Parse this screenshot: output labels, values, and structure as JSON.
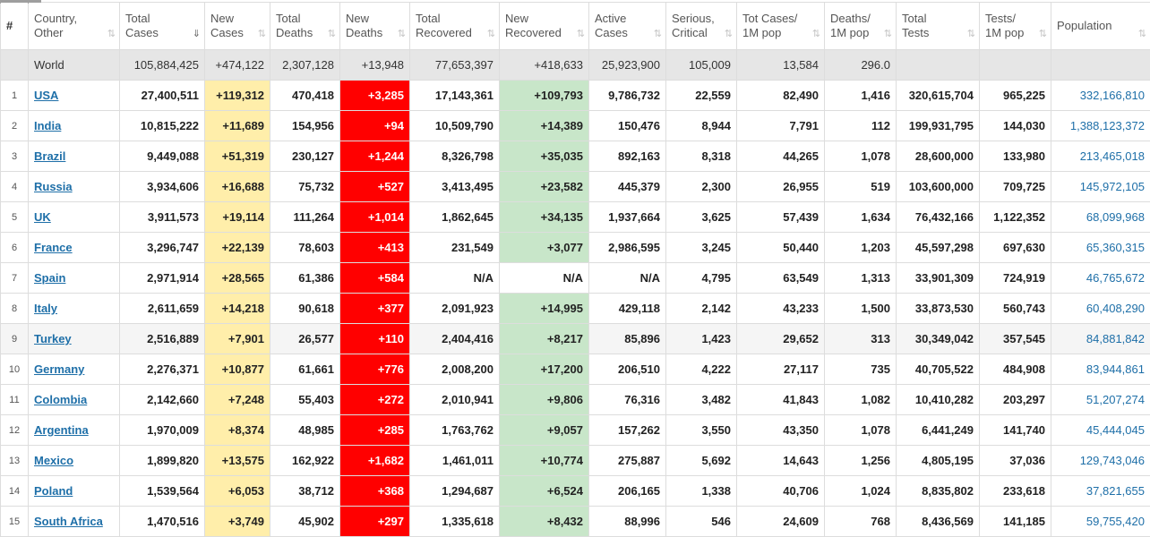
{
  "columns": [
    {
      "key": "hash",
      "label": "#"
    },
    {
      "key": "country",
      "label": "Country,\nOther"
    },
    {
      "key": "total_cases",
      "label": "Total\nCases"
    },
    {
      "key": "new_cases",
      "label": "New\nCases"
    },
    {
      "key": "total_deaths",
      "label": "Total\nDeaths"
    },
    {
      "key": "new_deaths",
      "label": "New\nDeaths"
    },
    {
      "key": "total_recovered",
      "label": "Total\nRecovered"
    },
    {
      "key": "new_recovered",
      "label": "New\nRecovered"
    },
    {
      "key": "active_cases",
      "label": "Active\nCases"
    },
    {
      "key": "serious",
      "label": "Serious,\nCritical"
    },
    {
      "key": "cases_per_1m",
      "label": "Tot Cases/\n1M pop"
    },
    {
      "key": "deaths_per_1m",
      "label": "Deaths/\n1M pop"
    },
    {
      "key": "total_tests",
      "label": "Total\nTests"
    },
    {
      "key": "tests_per_1m",
      "label": "Tests/\n1M pop"
    },
    {
      "key": "population",
      "label": "Population"
    }
  ],
  "sorted_column": "total_cases",
  "colors": {
    "new_cases_bg": "#ffeeaa",
    "new_deaths_bg": "#ff0000",
    "new_recovered_bg": "#c8e6c9",
    "link": "#1e6fa8",
    "world_row_bg": "#e6e6e6"
  },
  "world": {
    "country": "World",
    "total_cases": "105,884,425",
    "new_cases": "+474,122",
    "total_deaths": "2,307,128",
    "new_deaths": "+13,948",
    "total_recovered": "77,653,397",
    "new_recovered": "+418,633",
    "active_cases": "25,923,900",
    "serious": "105,009",
    "cases_per_1m": "13,584",
    "deaths_per_1m": "296.0",
    "total_tests": "",
    "tests_per_1m": "",
    "population": ""
  },
  "rows": [
    {
      "idx": "1",
      "country": "USA",
      "total_cases": "27,400,511",
      "new_cases": "+119,312",
      "total_deaths": "470,418",
      "new_deaths": "+3,285",
      "total_recovered": "17,143,361",
      "new_recovered": "+109,793",
      "active_cases": "9,786,732",
      "serious": "22,559",
      "cases_per_1m": "82,490",
      "deaths_per_1m": "1,416",
      "total_tests": "320,615,704",
      "tests_per_1m": "965,225",
      "population": "332,166,810"
    },
    {
      "idx": "2",
      "country": "India",
      "total_cases": "10,815,222",
      "new_cases": "+11,689",
      "total_deaths": "154,956",
      "new_deaths": "+94",
      "total_recovered": "10,509,790",
      "new_recovered": "+14,389",
      "active_cases": "150,476",
      "serious": "8,944",
      "cases_per_1m": "7,791",
      "deaths_per_1m": "112",
      "total_tests": "199,931,795",
      "tests_per_1m": "144,030",
      "population": "1,388,123,372"
    },
    {
      "idx": "3",
      "country": "Brazil",
      "total_cases": "9,449,088",
      "new_cases": "+51,319",
      "total_deaths": "230,127",
      "new_deaths": "+1,244",
      "total_recovered": "8,326,798",
      "new_recovered": "+35,035",
      "active_cases": "892,163",
      "serious": "8,318",
      "cases_per_1m": "44,265",
      "deaths_per_1m": "1,078",
      "total_tests": "28,600,000",
      "tests_per_1m": "133,980",
      "population": "213,465,018"
    },
    {
      "idx": "4",
      "country": "Russia",
      "total_cases": "3,934,606",
      "new_cases": "+16,688",
      "total_deaths": "75,732",
      "new_deaths": "+527",
      "total_recovered": "3,413,495",
      "new_recovered": "+23,582",
      "active_cases": "445,379",
      "serious": "2,300",
      "cases_per_1m": "26,955",
      "deaths_per_1m": "519",
      "total_tests": "103,600,000",
      "tests_per_1m": "709,725",
      "population": "145,972,105"
    },
    {
      "idx": "5",
      "country": "UK",
      "total_cases": "3,911,573",
      "new_cases": "+19,114",
      "total_deaths": "111,264",
      "new_deaths": "+1,014",
      "total_recovered": "1,862,645",
      "new_recovered": "+34,135",
      "active_cases": "1,937,664",
      "serious": "3,625",
      "cases_per_1m": "57,439",
      "deaths_per_1m": "1,634",
      "total_tests": "76,432,166",
      "tests_per_1m": "1,122,352",
      "population": "68,099,968"
    },
    {
      "idx": "6",
      "country": "France",
      "total_cases": "3,296,747",
      "new_cases": "+22,139",
      "total_deaths": "78,603",
      "new_deaths": "+413",
      "total_recovered": "231,549",
      "new_recovered": "+3,077",
      "active_cases": "2,986,595",
      "serious": "3,245",
      "cases_per_1m": "50,440",
      "deaths_per_1m": "1,203",
      "total_tests": "45,597,298",
      "tests_per_1m": "697,630",
      "population": "65,360,315"
    },
    {
      "idx": "7",
      "country": "Spain",
      "total_cases": "2,971,914",
      "new_cases": "+28,565",
      "total_deaths": "61,386",
      "new_deaths": "+584",
      "total_recovered": "N/A",
      "new_recovered": "N/A",
      "active_cases": "N/A",
      "serious": "4,795",
      "cases_per_1m": "63,549",
      "deaths_per_1m": "1,313",
      "total_tests": "33,901,309",
      "tests_per_1m": "724,919",
      "population": "46,765,672"
    },
    {
      "idx": "8",
      "country": "Italy",
      "total_cases": "2,611,659",
      "new_cases": "+14,218",
      "total_deaths": "90,618",
      "new_deaths": "+377",
      "total_recovered": "2,091,923",
      "new_recovered": "+14,995",
      "active_cases": "429,118",
      "serious": "2,142",
      "cases_per_1m": "43,233",
      "deaths_per_1m": "1,500",
      "total_tests": "33,873,530",
      "tests_per_1m": "560,743",
      "population": "60,408,290"
    },
    {
      "idx": "9",
      "country": "Turkey",
      "total_cases": "2,516,889",
      "new_cases": "+7,901",
      "total_deaths": "26,577",
      "new_deaths": "+110",
      "total_recovered": "2,404,416",
      "new_recovered": "+8,217",
      "active_cases": "85,896",
      "serious": "1,423",
      "cases_per_1m": "29,652",
      "deaths_per_1m": "313",
      "total_tests": "30,349,042",
      "tests_per_1m": "357,545",
      "population": "84,881,842"
    },
    {
      "idx": "10",
      "country": "Germany",
      "total_cases": "2,276,371",
      "new_cases": "+10,877",
      "total_deaths": "61,661",
      "new_deaths": "+776",
      "total_recovered": "2,008,200",
      "new_recovered": "+17,200",
      "active_cases": "206,510",
      "serious": "4,222",
      "cases_per_1m": "27,117",
      "deaths_per_1m": "735",
      "total_tests": "40,705,522",
      "tests_per_1m": "484,908",
      "population": "83,944,861"
    },
    {
      "idx": "11",
      "country": "Colombia",
      "total_cases": "2,142,660",
      "new_cases": "+7,248",
      "total_deaths": "55,403",
      "new_deaths": "+272",
      "total_recovered": "2,010,941",
      "new_recovered": "+9,806",
      "active_cases": "76,316",
      "serious": "3,482",
      "cases_per_1m": "41,843",
      "deaths_per_1m": "1,082",
      "total_tests": "10,410,282",
      "tests_per_1m": "203,297",
      "population": "51,207,274"
    },
    {
      "idx": "12",
      "country": "Argentina",
      "total_cases": "1,970,009",
      "new_cases": "+8,374",
      "total_deaths": "48,985",
      "new_deaths": "+285",
      "total_recovered": "1,763,762",
      "new_recovered": "+9,057",
      "active_cases": "157,262",
      "serious": "3,550",
      "cases_per_1m": "43,350",
      "deaths_per_1m": "1,078",
      "total_tests": "6,441,249",
      "tests_per_1m": "141,740",
      "population": "45,444,045"
    },
    {
      "idx": "13",
      "country": "Mexico",
      "total_cases": "1,899,820",
      "new_cases": "+13,575",
      "total_deaths": "162,922",
      "new_deaths": "+1,682",
      "total_recovered": "1,461,011",
      "new_recovered": "+10,774",
      "active_cases": "275,887",
      "serious": "5,692",
      "cases_per_1m": "14,643",
      "deaths_per_1m": "1,256",
      "total_tests": "4,805,195",
      "tests_per_1m": "37,036",
      "population": "129,743,046"
    },
    {
      "idx": "14",
      "country": "Poland",
      "total_cases": "1,539,564",
      "new_cases": "+6,053",
      "total_deaths": "38,712",
      "new_deaths": "+368",
      "total_recovered": "1,294,687",
      "new_recovered": "+6,524",
      "active_cases": "206,165",
      "serious": "1,338",
      "cases_per_1m": "40,706",
      "deaths_per_1m": "1,024",
      "total_tests": "8,835,802",
      "tests_per_1m": "233,618",
      "population": "37,821,655"
    },
    {
      "idx": "15",
      "country": "South Africa",
      "total_cases": "1,470,516",
      "new_cases": "+3,749",
      "total_deaths": "45,902",
      "new_deaths": "+297",
      "total_recovered": "1,335,618",
      "new_recovered": "+8,432",
      "active_cases": "88,996",
      "serious": "546",
      "cases_per_1m": "24,609",
      "deaths_per_1m": "768",
      "total_tests": "8,436,569",
      "tests_per_1m": "141,185",
      "population": "59,755,420"
    }
  ]
}
